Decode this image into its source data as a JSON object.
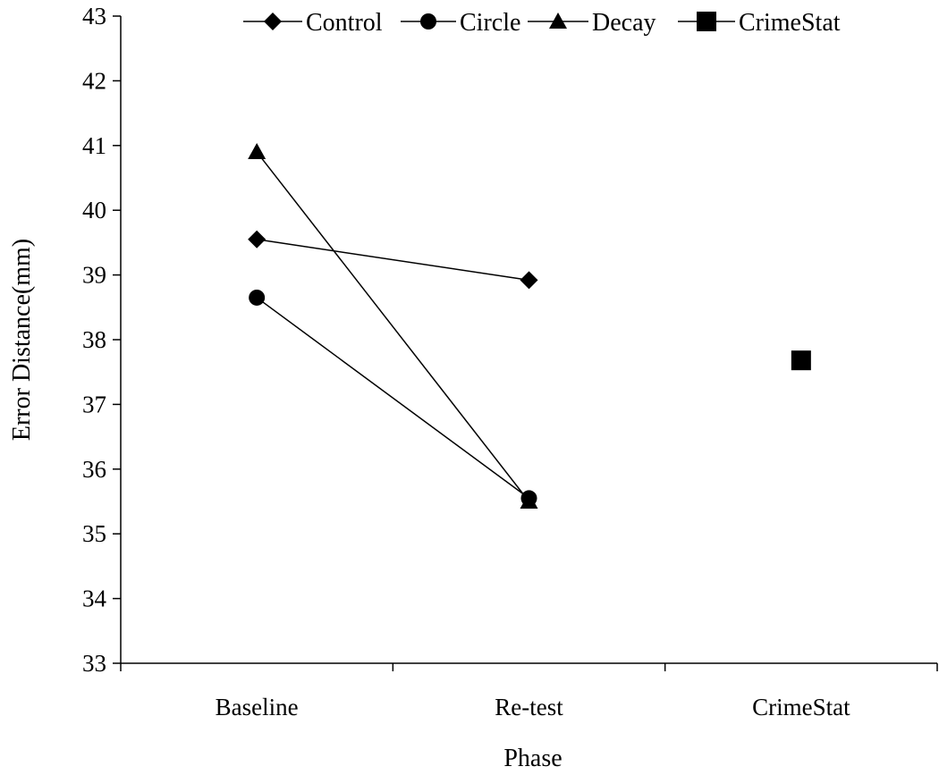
{
  "chart_data": {
    "type": "line",
    "title": "",
    "xlabel": "Phase",
    "ylabel": "Error Distance(mm)",
    "categories": [
      "Baseline",
      "Re-test",
      "CrimeStat"
    ],
    "ylim": [
      33,
      43
    ],
    "yticks": [
      33,
      34,
      35,
      36,
      37,
      38,
      39,
      40,
      41,
      42,
      43
    ],
    "grid": false,
    "legend_position": "top",
    "series": [
      {
        "name": "Control",
        "marker": "diamond",
        "color": "#000000",
        "values": [
          39.55,
          38.92,
          null
        ]
      },
      {
        "name": "Circle",
        "marker": "circle",
        "color": "#000000",
        "values": [
          38.65,
          35.55,
          null
        ]
      },
      {
        "name": "Decay",
        "marker": "triangle",
        "color": "#000000",
        "values": [
          40.9,
          35.5,
          null
        ]
      },
      {
        "name": "CrimeStat",
        "marker": "square",
        "color": "#000000",
        "values": [
          null,
          null,
          37.68
        ]
      }
    ]
  }
}
